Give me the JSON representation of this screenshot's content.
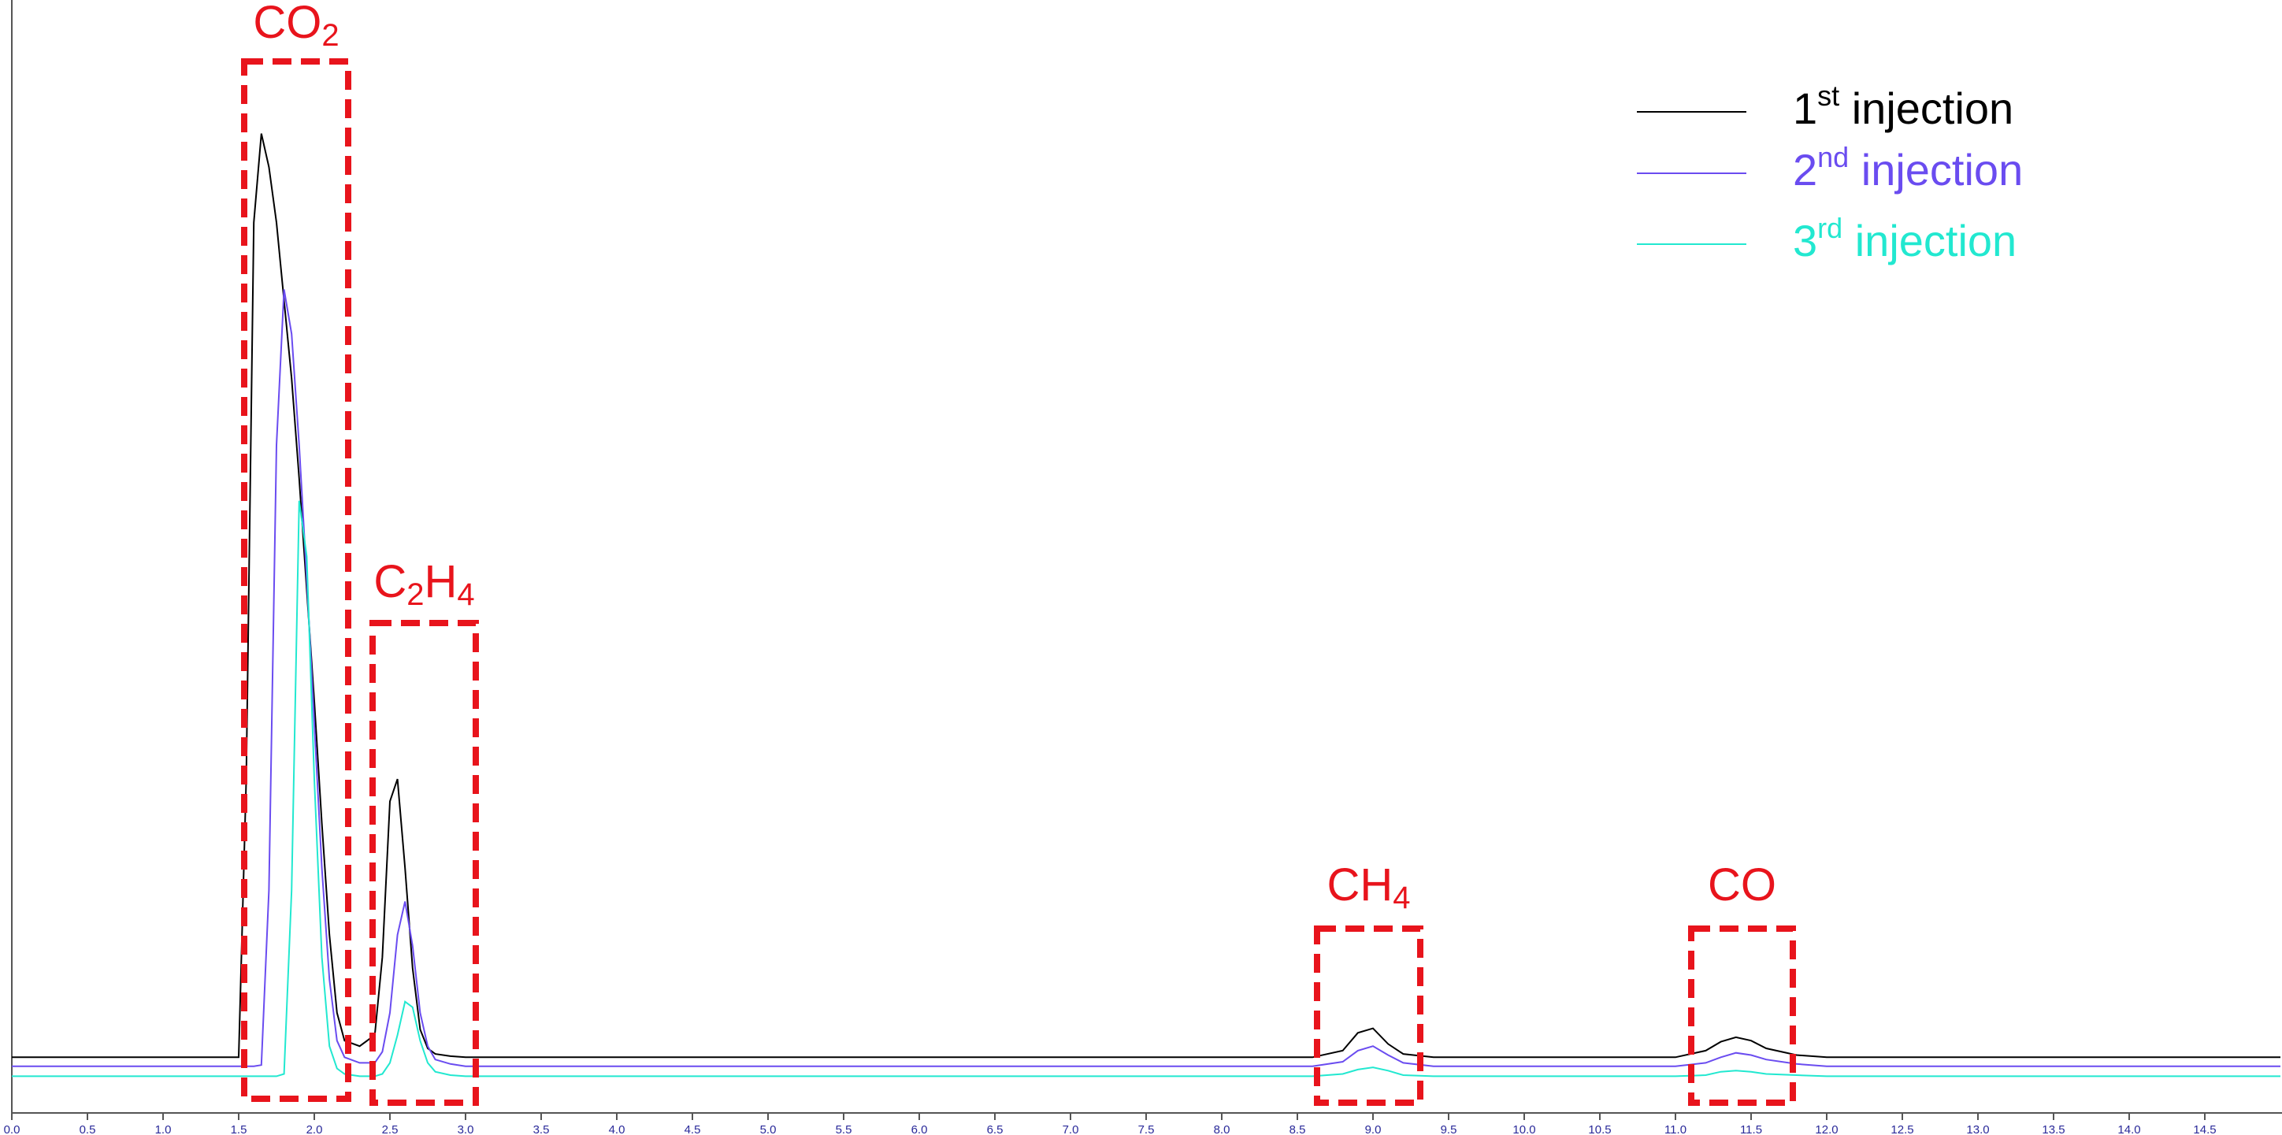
{
  "chart_data": {
    "type": "line",
    "x": [
      0,
      1.5,
      1.55,
      1.6,
      1.65,
      1.7,
      1.75,
      1.8,
      1.85,
      1.9,
      1.95,
      2.0,
      2.05,
      2.1,
      2.15,
      2.2,
      2.3,
      2.4,
      2.45,
      2.5,
      2.55,
      2.6,
      2.65,
      2.7,
      2.75,
      2.8,
      2.9,
      3.0,
      8.6,
      8.8,
      8.9,
      9.0,
      9.1,
      9.2,
      9.4,
      11.0,
      11.2,
      11.3,
      11.4,
      11.5,
      11.6,
      11.8,
      12.0,
      15.0
    ],
    "series": [
      {
        "name": "1st injection",
        "color": "#000000",
        "values": [
          5,
          5,
          30,
          80,
          88,
          85,
          80,
          73,
          66,
          57,
          47,
          37,
          26,
          16,
          9,
          6.5,
          6,
          7,
          14,
          28,
          30,
          22,
          13,
          7.5,
          5.8,
          5.3,
          5.1,
          5,
          5,
          5.6,
          7.2,
          7.6,
          6.2,
          5.3,
          5,
          5,
          5.6,
          6.4,
          6.8,
          6.5,
          5.8,
          5.2,
          5,
          5
        ]
      },
      {
        "name": "2nd injection",
        "color": "#6a4cf0",
        "values": [
          4.2,
          4.2,
          4.2,
          4.2,
          4.3,
          20,
          60,
          74,
          70,
          60,
          48,
          35,
          22,
          12,
          6.5,
          5,
          4.5,
          4.5,
          5.5,
          9,
          16,
          19,
          15,
          9,
          6,
          4.8,
          4.4,
          4.2,
          4.2,
          4.6,
          5.6,
          6.0,
          5.2,
          4.5,
          4.2,
          4.2,
          4.5,
          5.0,
          5.4,
          5.2,
          4.8,
          4.4,
          4.2,
          4.2
        ]
      },
      {
        "name": "3rd injection",
        "color": "#22e8d0",
        "values": [
          3.3,
          3.3,
          3.3,
          3.3,
          3.3,
          3.3,
          3.3,
          3.5,
          20,
          55,
          50,
          30,
          14,
          6,
          4,
          3.5,
          3.3,
          3.3,
          3.5,
          4.5,
          7,
          10,
          9.5,
          6.5,
          4.5,
          3.7,
          3.4,
          3.3,
          3.3,
          3.5,
          3.9,
          4.1,
          3.8,
          3.4,
          3.3,
          3.3,
          3.4,
          3.7,
          3.8,
          3.7,
          3.5,
          3.4,
          3.3,
          3.3
        ]
      }
    ],
    "xlim": [
      0,
      15
    ],
    "ylim": [
      0,
      100
    ],
    "xticks": [
      {
        "value": 0,
        "label": "0.0"
      },
      0.5,
      {
        "value": 1,
        "label": "1.0"
      },
      1.5,
      {
        "value": 2,
        "label": "2.0"
      },
      2.5,
      {
        "value": 3,
        "label": "3.0"
      },
      3.5,
      {
        "value": 4,
        "label": "4.0"
      },
      4.5,
      {
        "value": 5,
        "label": "5.0"
      },
      5.5,
      {
        "value": 6,
        "label": "6.0"
      },
      6.5,
      {
        "value": 7,
        "label": "7.0"
      },
      7.5,
      {
        "value": 8,
        "label": "8.0"
      },
      8.5,
      {
        "value": 9,
        "label": "9.0"
      },
      9.5,
      {
        "value": 10,
        "label": "10.0"
      },
      10.5,
      {
        "value": 11,
        "label": "11.0"
      },
      11.5,
      {
        "value": 12,
        "label": "12.0"
      },
      12.5,
      {
        "value": 13,
        "label": "13.0"
      },
      13.5,
      {
        "value": 14,
        "label": "14.0"
      },
      14.5
    ],
    "annotations": [
      {
        "label": [
          "CO",
          "2"
        ]
      },
      {
        "label": [
          "C",
          "2",
          "H",
          "4"
        ]
      },
      {
        "label": [
          "CH",
          "4"
        ]
      },
      {
        "label": [
          "CO"
        ]
      }
    ],
    "annotation_color": "#e8141c"
  }
}
